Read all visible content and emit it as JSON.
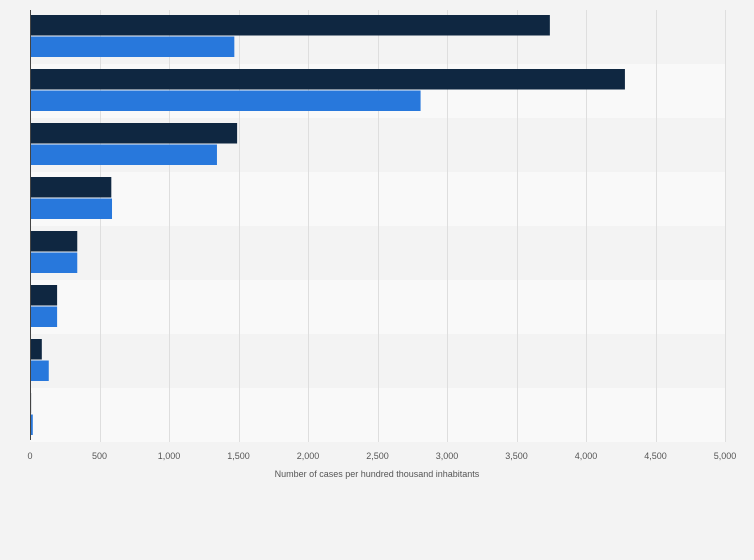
{
  "chart_data": {
    "type": "bar",
    "orientation": "horizontal",
    "categories": [
      "",
      "",
      "",
      "",
      "",
      "",
      "",
      ""
    ],
    "series": [
      {
        "values": [
          3740,
          4280,
          1490,
          585,
          340,
          195,
          85,
          8
        ],
        "color": "#0f2741"
      },
      {
        "values": [
          1470,
          2810,
          1345,
          590,
          340,
          195,
          135,
          20
        ],
        "color": "#2878dc"
      }
    ],
    "xlabel": "Number of cases per hundred thousand inhabitants",
    "ylabel": "",
    "xlim": [
      0,
      5000
    ],
    "xticks": [
      0,
      500,
      1000,
      1500,
      2000,
      2500,
      3000,
      3500,
      4000,
      4500,
      5000
    ],
    "xtick_labels": [
      "0",
      "500",
      "1,000",
      "1,500",
      "2,000",
      "2,500",
      "3,000",
      "3,500",
      "4,000",
      "4,500",
      "5,000"
    ],
    "grid": true,
    "legend": "none"
  }
}
